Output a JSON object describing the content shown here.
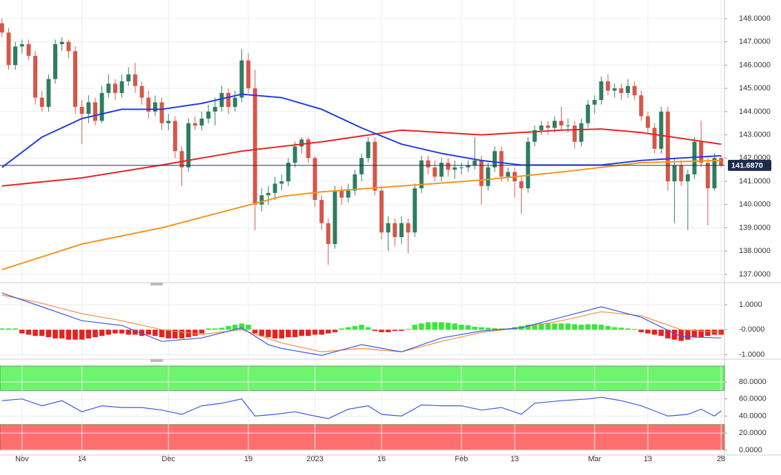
{
  "chart_data": [
    {
      "type": "candlestick",
      "xlim": [
        -0.3,
        108.5
      ],
      "ylim": [
        136.7,
        148.8
      ],
      "yticks": [
        {
          "value": 148,
          "label": "148.0000"
        },
        {
          "value": 147,
          "label": "147.0000"
        },
        {
          "value": 146,
          "label": "146.0000"
        },
        {
          "value": 145,
          "label": "145.0000"
        },
        {
          "value": 144,
          "label": "144.0000"
        },
        {
          "value": 143,
          "label": "143.0000"
        },
        {
          "value": 142,
          "label": "142.0000"
        },
        {
          "value": 141,
          "label": "141.0000"
        },
        {
          "value": 140,
          "label": "140.0000"
        },
        {
          "value": 139,
          "label": "139.0000"
        },
        {
          "value": 138,
          "label": "138.0000"
        },
        {
          "value": 137,
          "label": "137.0000"
        }
      ],
      "grid": true,
      "up_color": "#2f7d5f",
      "down_color": "#d6574a",
      "last_price": {
        "value": 141.687,
        "label": "141.6870",
        "color": "#1c2a4d"
      },
      "ohlc": [
        [
          147.8,
          148.0,
          147.2,
          147.4
        ],
        [
          147.4,
          147.6,
          145.8,
          146.0
        ],
        [
          146.0,
          147.0,
          145.8,
          146.8
        ],
        [
          146.8,
          147.1,
          146.5,
          146.9
        ],
        [
          146.9,
          147.1,
          146.2,
          146.4
        ],
        [
          146.4,
          146.6,
          144.3,
          144.6
        ],
        [
          144.6,
          144.9,
          144.0,
          144.2
        ],
        [
          144.2,
          145.6,
          144.0,
          145.4
        ],
        [
          145.4,
          147.1,
          145.2,
          146.9
        ],
        [
          146.9,
          147.2,
          146.6,
          147.0
        ],
        [
          147.0,
          147.1,
          146.3,
          146.6
        ],
        [
          146.6,
          146.8,
          143.9,
          144.2
        ],
        [
          144.2,
          144.5,
          142.6,
          143.9
        ],
        [
          143.9,
          144.7,
          143.5,
          144.4
        ],
        [
          144.4,
          144.6,
          143.4,
          143.6
        ],
        [
          143.6,
          145.1,
          143.5,
          144.8
        ],
        [
          144.8,
          145.6,
          144.6,
          145.2
        ],
        [
          145.2,
          145.4,
          144.5,
          144.8
        ],
        [
          144.8,
          145.6,
          144.6,
          145.3
        ],
        [
          145.3,
          145.9,
          145.1,
          145.6
        ],
        [
          145.6,
          146.1,
          144.8,
          145.1
        ],
        [
          145.1,
          145.3,
          144.3,
          144.6
        ],
        [
          144.6,
          144.9,
          143.7,
          144.0
        ],
        [
          144.0,
          144.7,
          143.8,
          144.4
        ],
        [
          144.4,
          144.6,
          143.2,
          143.5
        ],
        [
          143.5,
          143.9,
          143.2,
          143.6
        ],
        [
          143.6,
          143.8,
          142.0,
          142.3
        ],
        [
          142.3,
          142.5,
          140.8,
          141.6
        ],
        [
          141.6,
          143.7,
          141.4,
          143.5
        ],
        [
          143.5,
          143.8,
          143.2,
          143.4
        ],
        [
          143.4,
          144.0,
          143.2,
          143.7
        ],
        [
          143.7,
          144.3,
          143.5,
          144.0
        ],
        [
          144.0,
          144.6,
          143.4,
          144.2
        ],
        [
          144.2,
          145.1,
          144.0,
          144.8
        ],
        [
          144.8,
          145.0,
          143.9,
          144.2
        ],
        [
          144.2,
          144.9,
          144.0,
          144.6
        ],
        [
          144.6,
          146.7,
          144.4,
          146.2
        ],
        [
          146.2,
          146.5,
          144.8,
          145.0
        ],
        [
          145.0,
          145.8,
          138.9,
          140.0
        ],
        [
          140.0,
          140.7,
          139.7,
          140.4
        ],
        [
          140.4,
          140.8,
          140.0,
          140.5
        ],
        [
          140.5,
          141.2,
          140.2,
          140.9
        ],
        [
          140.9,
          141.3,
          140.6,
          141.0
        ],
        [
          141.0,
          142.0,
          140.8,
          141.8
        ],
        [
          141.8,
          142.7,
          141.6,
          142.5
        ],
        [
          142.5,
          142.9,
          142.2,
          142.8
        ],
        [
          142.8,
          142.9,
          141.8,
          142.0
        ],
        [
          142.0,
          142.1,
          139.9,
          140.2
        ],
        [
          140.2,
          140.4,
          138.9,
          139.2
        ],
        [
          139.2,
          139.4,
          137.4,
          138.3
        ],
        [
          138.3,
          140.8,
          138.1,
          140.6
        ],
        [
          140.6,
          140.8,
          140.0,
          140.3
        ],
        [
          140.3,
          140.9,
          140.1,
          140.6
        ],
        [
          140.6,
          141.5,
          140.4,
          141.3
        ],
        [
          141.3,
          142.2,
          141.0,
          142.0
        ],
        [
          142.0,
          142.9,
          141.8,
          142.7
        ],
        [
          142.7,
          142.9,
          140.4,
          140.6
        ],
        [
          140.6,
          140.8,
          138.5,
          138.8
        ],
        [
          138.8,
          139.5,
          138.0,
          139.2
        ],
        [
          139.2,
          139.4,
          138.2,
          138.6
        ],
        [
          138.6,
          139.5,
          138.3,
          139.2
        ],
        [
          139.2,
          139.4,
          137.9,
          138.8
        ],
        [
          138.8,
          140.9,
          138.6,
          140.7
        ],
        [
          140.7,
          142.1,
          140.5,
          141.9
        ],
        [
          141.9,
          142.1,
          141.3,
          141.6
        ],
        [
          141.6,
          141.9,
          141.0,
          141.2
        ],
        [
          141.2,
          142.0,
          141.0,
          141.8
        ],
        [
          141.8,
          142.0,
          141.2,
          141.5
        ],
        [
          141.5,
          141.9,
          141.1,
          141.6
        ],
        [
          141.6,
          141.8,
          141.3,
          141.6
        ],
        [
          141.6,
          141.9,
          141.4,
          141.7
        ],
        [
          141.7,
          142.9,
          141.5,
          141.9
        ],
        [
          141.9,
          142.1,
          140.0,
          140.8
        ],
        [
          140.8,
          141.8,
          140.6,
          141.6
        ],
        [
          141.6,
          142.5,
          141.4,
          142.3
        ],
        [
          142.3,
          142.5,
          141.0,
          141.2
        ],
        [
          141.2,
          141.6,
          141.0,
          141.4
        ],
        [
          141.4,
          141.6,
          140.3,
          141.0
        ],
        [
          141.0,
          141.2,
          139.6,
          140.7
        ],
        [
          140.7,
          142.9,
          140.5,
          142.7
        ],
        [
          142.7,
          143.4,
          142.5,
          143.2
        ],
        [
          143.2,
          143.6,
          143.0,
          143.4
        ],
        [
          143.4,
          143.6,
          143.0,
          143.3
        ],
        [
          143.3,
          143.8,
          143.1,
          143.6
        ],
        [
          143.6,
          144.2,
          143.2,
          143.4
        ],
        [
          143.4,
          143.7,
          143.1,
          143.4
        ],
        [
          143.4,
          143.6,
          142.4,
          142.7
        ],
        [
          142.7,
          143.7,
          142.5,
          143.5
        ],
        [
          143.5,
          144.5,
          143.3,
          144.3
        ],
        [
          144.3,
          144.7,
          143.9,
          144.5
        ],
        [
          144.5,
          145.5,
          144.3,
          145.3
        ],
        [
          145.3,
          145.6,
          144.7,
          144.9
        ],
        [
          144.9,
          145.2,
          144.6,
          145.0
        ],
        [
          145.0,
          145.2,
          144.5,
          144.8
        ],
        [
          144.8,
          145.4,
          144.6,
          145.1
        ],
        [
          145.1,
          145.3,
          144.5,
          144.7
        ],
        [
          144.7,
          144.9,
          143.6,
          143.8
        ],
        [
          143.8,
          144.0,
          143.1,
          143.3
        ],
        [
          143.3,
          143.5,
          142.2,
          142.4
        ],
        [
          142.4,
          144.2,
          142.2,
          144.0
        ],
        [
          144.0,
          144.2,
          140.6,
          141.0
        ],
        [
          141.0,
          142.0,
          139.2,
          141.7
        ],
        [
          141.7,
          141.9,
          140.8,
          141.0
        ],
        [
          141.0,
          141.5,
          138.9,
          141.3
        ],
        [
          141.3,
          142.9,
          141.1,
          142.7
        ],
        [
          142.7,
          143.6,
          141.6,
          141.8
        ],
        [
          141.8,
          142.0,
          139.1,
          140.7
        ],
        [
          140.7,
          142.2,
          140.6,
          142.0
        ],
        [
          142.0,
          142.1,
          141.6,
          141.687
        ]
      ],
      "lines": [
        {
          "color": "#f7931e",
          "x": [
            0,
            12,
            24,
            36,
            42,
            48,
            60,
            72,
            84,
            96,
            108
          ],
          "values": [
            137.2,
            138.3,
            139.0,
            139.9,
            140.35,
            140.55,
            140.8,
            141.05,
            141.4,
            141.8,
            141.9
          ]
        },
        {
          "color": "#e8201e",
          "x": [
            0,
            12,
            24,
            36,
            48,
            60,
            72,
            84,
            90,
            96,
            108
          ],
          "values": [
            140.8,
            141.15,
            141.7,
            142.3,
            142.7,
            143.2,
            143.0,
            143.2,
            143.25,
            143.1,
            142.6
          ]
        },
        {
          "color": "#1f3be0",
          "x": [
            0,
            6,
            12,
            18,
            24,
            30,
            36,
            42,
            48,
            54,
            60,
            66,
            72,
            78,
            84,
            90,
            96,
            102,
            108
          ],
          "values": [
            141.6,
            142.9,
            143.7,
            144.1,
            144.1,
            144.35,
            144.75,
            144.6,
            144.1,
            143.3,
            142.6,
            142.2,
            141.9,
            141.7,
            141.7,
            141.7,
            141.9,
            142.0,
            142.1
          ]
        }
      ]
    },
    {
      "type": "macd",
      "xlim": [
        -0.3,
        108.5
      ],
      "ylim": [
        -1.1,
        1.75
      ],
      "yticks": [
        {
          "value": 1,
          "label": "1.0000"
        },
        {
          "value": 0,
          "label": "-0.0000"
        },
        {
          "value": -1,
          "label": "-1.0000"
        }
      ],
      "grid": true,
      "up_color": "#3ae63a",
      "down_color": "#e8201e",
      "histogram": [
        0.05,
        0.05,
        0.05,
        -0.15,
        -0.2,
        -0.25,
        -0.25,
        -0.3,
        -0.35,
        -0.35,
        -0.4,
        -0.4,
        -0.4,
        -0.35,
        -0.3,
        -0.25,
        -0.2,
        -0.15,
        -0.15,
        -0.2,
        -0.2,
        -0.25,
        -0.2,
        -0.25,
        -0.3,
        -0.35,
        -0.35,
        -0.35,
        -0.3,
        -0.25,
        -0.15,
        0.05,
        0.05,
        0.08,
        0.15,
        0.2,
        0.25,
        0.2,
        -0.15,
        -0.25,
        -0.3,
        -0.35,
        -0.35,
        -0.3,
        -0.3,
        -0.25,
        -0.25,
        -0.2,
        -0.2,
        -0.15,
        -0.1,
        0.05,
        0.1,
        0.15,
        0.2,
        0.1,
        -0.05,
        -0.1,
        -0.1,
        -0.05,
        -0.05,
        0.03,
        0.2,
        0.25,
        0.3,
        0.3,
        0.3,
        0.28,
        0.25,
        0.2,
        0.18,
        0.12,
        0.1,
        0.08,
        0.06,
        0.05,
        0.03,
        0.1,
        0.15,
        0.2,
        0.22,
        0.25,
        0.25,
        0.25,
        0.25,
        0.25,
        0.22,
        0.2,
        0.22,
        0.22,
        0.2,
        0.15,
        0.1,
        0.08,
        0.05,
        0.03,
        -0.1,
        -0.15,
        -0.2,
        -0.25,
        -0.35,
        -0.4,
        -0.45,
        -0.4,
        -0.3,
        -0.3,
        -0.25,
        -0.2,
        -0.2
      ],
      "lines": [
        {
          "color": "#f58a3c",
          "x": [
            0,
            6,
            12,
            18,
            24,
            30,
            36,
            42,
            48,
            54,
            60,
            66,
            72,
            78,
            84,
            90,
            96,
            102,
            108
          ],
          "values": [
            1.39,
            1.06,
            0.64,
            0.36,
            0,
            -0.19,
            0,
            -0.53,
            -0.89,
            -0.75,
            -0.89,
            -0.47,
            -0.11,
            0.08,
            0.36,
            0.72,
            0.56,
            0,
            -0.11
          ]
        },
        {
          "color": "#3a55e8",
          "x": [
            0,
            6,
            12,
            18,
            24,
            30,
            36,
            40,
            42,
            48,
            54,
            60,
            66,
            72,
            78,
            84,
            90,
            96,
            102,
            108
          ],
          "values": [
            1.47,
            0.92,
            0.36,
            0.17,
            -0.47,
            -0.33,
            0.08,
            -0.6,
            -0.75,
            -1.03,
            -0.6,
            -0.89,
            -0.33,
            -0.05,
            0.08,
            0.5,
            0.92,
            0.5,
            -0.28,
            -0.33
          ]
        }
      ]
    },
    {
      "type": "line",
      "xlim": [
        -0.3,
        108.5
      ],
      "ylim": [
        -5.7,
        103.4
      ],
      "yticks": [
        {
          "value": 80,
          "label": "80.0000"
        },
        {
          "value": 60,
          "label": "60.0000"
        },
        {
          "value": 40,
          "label": "40.0000"
        },
        {
          "value": 20,
          "label": "20.0000"
        },
        {
          "value": 0,
          "label": "0.0000"
        }
      ],
      "grid": true,
      "bands": [
        {
          "range": [
            70,
            98.6
          ],
          "color": "#6ef56e"
        },
        {
          "range": [
            0,
            30
          ],
          "color": "#ff6f6f"
        }
      ],
      "lines": [
        {
          "color": "#3a55e8",
          "x": [
            0,
            3,
            6,
            9,
            12,
            15,
            18,
            21,
            24,
            27,
            30,
            33,
            36,
            38,
            41,
            44,
            47,
            49,
            52,
            55,
            57,
            60,
            63,
            66,
            69,
            72,
            75,
            78,
            80,
            84,
            88,
            90,
            93,
            96,
            98,
            100,
            103,
            105,
            107,
            108
          ],
          "values": [
            58,
            60,
            52,
            58,
            45,
            52,
            50,
            50,
            47,
            42,
            52,
            55,
            60,
            40,
            42,
            45,
            40,
            37,
            48,
            52,
            42,
            40,
            53,
            52,
            52,
            47,
            50,
            42,
            55,
            58,
            60,
            62,
            58,
            52,
            46,
            40,
            42,
            48,
            40,
            46
          ]
        }
      ],
      "xticks": [
        {
          "value": 3,
          "label": "Nov"
        },
        {
          "value": 12,
          "label": "14"
        },
        {
          "value": 25,
          "label": "Dec"
        },
        {
          "value": 37,
          "label": "19"
        },
        {
          "value": 47,
          "label": "2023"
        },
        {
          "value": 57,
          "label": "16"
        },
        {
          "value": 69,
          "label": "Feb"
        },
        {
          "value": 77,
          "label": "13"
        },
        {
          "value": 89,
          "label": "Mar"
        },
        {
          "value": 97,
          "label": "13"
        },
        {
          "value": 108,
          "label": "28"
        }
      ]
    }
  ]
}
